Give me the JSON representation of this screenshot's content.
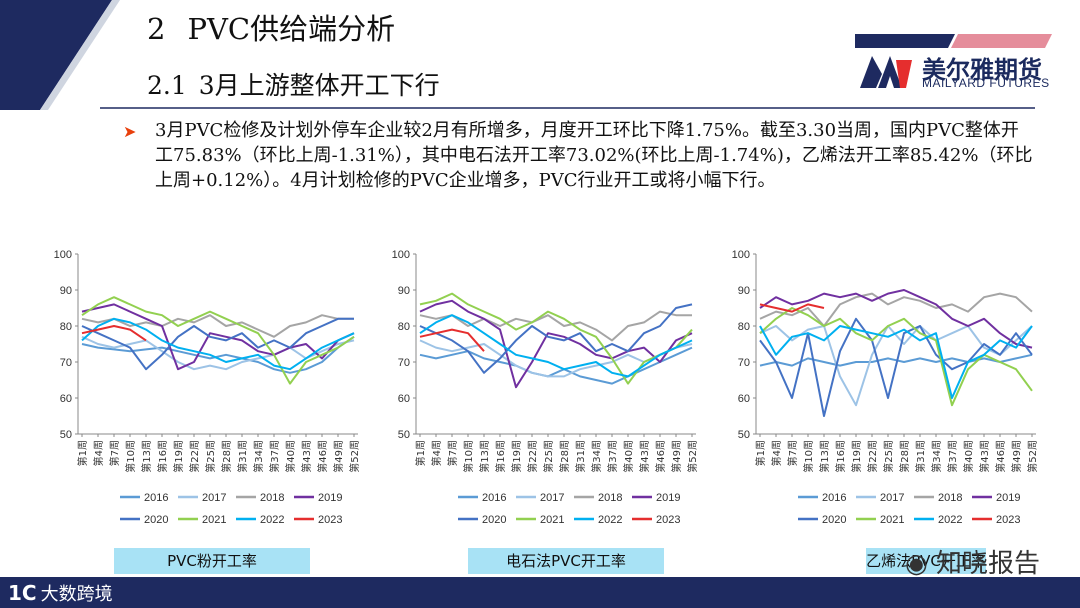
{
  "header": {
    "section_num": "2",
    "section_title": "PVC供给端分析",
    "subsection_num": "2.1",
    "subsection_title": "3月上游整体开工下行"
  },
  "logo": {
    "name_cn": "美尔雅期货",
    "name_en": "MAILYARD FUTURES",
    "icon": "my-letters-logo-icon"
  },
  "summary": "3月PVC检修及计划外停车企业较2月有所增多，月度开工环比下降1.75%。截至3.30当周，国内PVC整体开工75.83%（环比上周-1.31%），其中电石法开工率73.02%(环比上周-1.74%)，乙烯法开工率85.42%（环比上周+0.12%）。4月计划检修的PVC企业增多，PVC行业开工或将小幅下行。",
  "footer": {
    "logo_text": "大数跨境",
    "logo_mark": "1C"
  },
  "watermark": {
    "text": "知晓报告",
    "icon": "wechat-icon"
  },
  "colors": {
    "accent_red": "#e8400c",
    "navy": "#1e2a60",
    "caption_bg": "#a8e2f5"
  },
  "chart_data": [
    {
      "type": "line",
      "caption": "PVC粉开工率",
      "ylim": [
        50,
        100
      ],
      "yticks": [
        50,
        60,
        70,
        80,
        90,
        100
      ],
      "xticks": [
        "第1周",
        "第4周",
        "第7周",
        "第10周",
        "第13周",
        "第16周",
        "第19周",
        "第22周",
        "第25周",
        "第28周",
        "第31周",
        "第34周",
        "第37周",
        "第40周",
        "第43周",
        "第46周",
        "第49周",
        "第52周"
      ],
      "series": [
        {
          "name": "2016",
          "color": "#5b9bd5",
          "values": [
            75,
            74,
            73.5,
            73,
            73.5,
            74,
            73,
            72,
            71,
            72,
            71,
            70,
            68,
            67,
            68,
            70,
            74,
            77
          ]
        },
        {
          "name": "2017",
          "color": "#9dc3e6",
          "values": [
            77,
            75,
            74,
            75,
            76,
            73,
            70,
            68,
            69,
            68,
            70,
            71,
            72,
            74,
            71,
            73,
            75,
            76
          ]
        },
        {
          "name": "2018",
          "color": "#a5a5a5",
          "values": [
            82,
            81,
            82,
            80,
            81,
            80,
            82,
            81,
            83,
            80,
            81,
            79,
            77,
            80,
            81,
            83,
            82,
            82
          ]
        },
        {
          "name": "2019",
          "color": "#7030a0",
          "values": [
            84,
            85,
            86,
            84,
            82,
            80,
            68,
            70,
            78,
            77,
            76,
            73,
            72,
            74,
            75,
            71,
            76,
            78
          ]
        },
        {
          "name": "2020",
          "color": "#4472c4",
          "values": [
            80,
            78,
            76,
            74,
            68,
            72,
            77,
            80,
            77,
            76,
            78,
            74,
            76,
            74,
            78,
            80,
            82,
            82
          ]
        },
        {
          "name": "2021",
          "color": "#92d050",
          "values": [
            83,
            86,
            88,
            86,
            84,
            83,
            80,
            82,
            84,
            82,
            80,
            78,
            72,
            64,
            70,
            72,
            74,
            77
          ]
        },
        {
          "name": "2022",
          "color": "#00b0f0",
          "values": [
            76,
            80,
            82,
            81,
            79,
            76,
            74,
            73,
            72,
            70,
            71,
            72,
            69,
            68,
            71,
            74,
            76,
            78
          ]
        },
        {
          "name": "2023",
          "color": "#e52e2e",
          "values": [
            78,
            79,
            80,
            79,
            76
          ]
        }
      ]
    },
    {
      "type": "line",
      "caption": "电石法PVC开工率",
      "ylim": [
        50,
        100
      ],
      "yticks": [
        50,
        60,
        70,
        80,
        90,
        100
      ],
      "xticks": [
        "第1周",
        "第4周",
        "第7周",
        "第10周",
        "第13周",
        "第16周",
        "第19周",
        "第22周",
        "第25周",
        "第28周",
        "第31周",
        "第34周",
        "第37周",
        "第40周",
        "第43周",
        "第46周",
        "第49周",
        "第52周"
      ],
      "series": [
        {
          "name": "2016",
          "color": "#5b9bd5",
          "values": [
            72,
            71,
            72,
            73,
            71,
            70,
            69,
            67,
            66,
            68,
            66,
            65,
            64,
            66,
            68,
            70,
            72,
            74
          ]
        },
        {
          "name": "2017",
          "color": "#9dc3e6",
          "values": [
            76,
            74,
            73,
            74,
            75,
            72,
            69,
            67,
            66,
            66,
            68,
            69,
            70,
            72,
            70,
            72,
            74,
            75
          ]
        },
        {
          "name": "2018",
          "color": "#a5a5a5",
          "values": [
            83,
            82,
            83,
            80,
            82,
            80,
            82,
            81,
            83,
            80,
            81,
            79,
            76,
            80,
            81,
            84,
            83,
            83
          ]
        },
        {
          "name": "2019",
          "color": "#7030a0",
          "values": [
            84,
            86,
            87,
            84,
            82,
            79,
            63,
            70,
            78,
            77,
            75,
            72,
            71,
            73,
            74,
            70,
            76,
            78
          ]
        },
        {
          "name": "2020",
          "color": "#4472c4",
          "values": [
            80,
            78,
            76,
            73,
            67,
            71,
            76,
            80,
            77,
            76,
            78,
            73,
            75,
            73,
            78,
            80,
            85,
            86
          ]
        },
        {
          "name": "2021",
          "color": "#92d050",
          "values": [
            86,
            87,
            89,
            86,
            84,
            82,
            79,
            81,
            84,
            82,
            79,
            77,
            71,
            64,
            70,
            72,
            74,
            79
          ]
        },
        {
          "name": "2022",
          "color": "#00b0f0",
          "values": [
            78,
            81,
            83,
            81,
            78,
            75,
            72,
            71,
            70,
            68,
            69,
            70,
            67,
            66,
            69,
            72,
            74,
            76
          ]
        },
        {
          "name": "2023",
          "color": "#e52e2e",
          "values": [
            77,
            78,
            79,
            78,
            73
          ]
        }
      ]
    },
    {
      "type": "line",
      "caption": "乙烯法PVC开工率",
      "ylim": [
        50,
        100
      ],
      "yticks": [
        50,
        60,
        70,
        80,
        90,
        100
      ],
      "xticks": [
        "第1周",
        "第4周",
        "第7周",
        "第10周",
        "第13周",
        "第16周",
        "第19周",
        "第22周",
        "第25周",
        "第28周",
        "第31周",
        "第34周",
        "第37周",
        "第40周",
        "第43周",
        "第46周",
        "第49周",
        "第52周"
      ],
      "series": [
        {
          "name": "2016",
          "color": "#5b9bd5",
          "values": [
            69,
            70,
            69,
            71,
            70,
            69,
            70,
            70,
            71,
            70,
            71,
            70,
            71,
            70,
            71,
            70,
            71,
            72
          ]
        },
        {
          "name": "2017",
          "color": "#9dc3e6",
          "values": [
            78,
            80,
            76,
            79,
            80,
            66,
            58,
            72,
            80,
            75,
            80,
            76,
            78,
            80,
            74,
            72,
            76,
            80
          ]
        },
        {
          "name": "2018",
          "color": "#a5a5a5",
          "values": [
            82,
            84,
            83,
            85,
            80,
            86,
            88,
            89,
            86,
            88,
            87,
            85,
            86,
            84,
            88,
            89,
            88,
            84
          ]
        },
        {
          "name": "2019",
          "color": "#7030a0",
          "values": [
            85,
            88,
            86,
            87,
            89,
            88,
            89,
            87,
            89,
            90,
            88,
            86,
            82,
            80,
            82,
            78,
            75,
            74
          ]
        },
        {
          "name": "2020",
          "color": "#4472c4",
          "values": [
            76,
            70,
            60,
            78,
            55,
            73,
            82,
            76,
            60,
            78,
            80,
            72,
            68,
            70,
            75,
            72,
            78,
            72
          ]
        },
        {
          "name": "2021",
          "color": "#92d050",
          "values": [
            78,
            82,
            85,
            83,
            80,
            82,
            78,
            76,
            80,
            82,
            78,
            76,
            58,
            68,
            72,
            70,
            68,
            62
          ]
        },
        {
          "name": "2022",
          "color": "#00b0f0",
          "values": [
            80,
            72,
            77,
            78,
            76,
            80,
            79,
            78,
            77,
            79,
            76,
            78,
            60,
            70,
            72,
            76,
            74,
            80
          ]
        },
        {
          "name": "2023",
          "color": "#e52e2e",
          "values": [
            86,
            85,
            84,
            86,
            85
          ]
        }
      ]
    }
  ]
}
